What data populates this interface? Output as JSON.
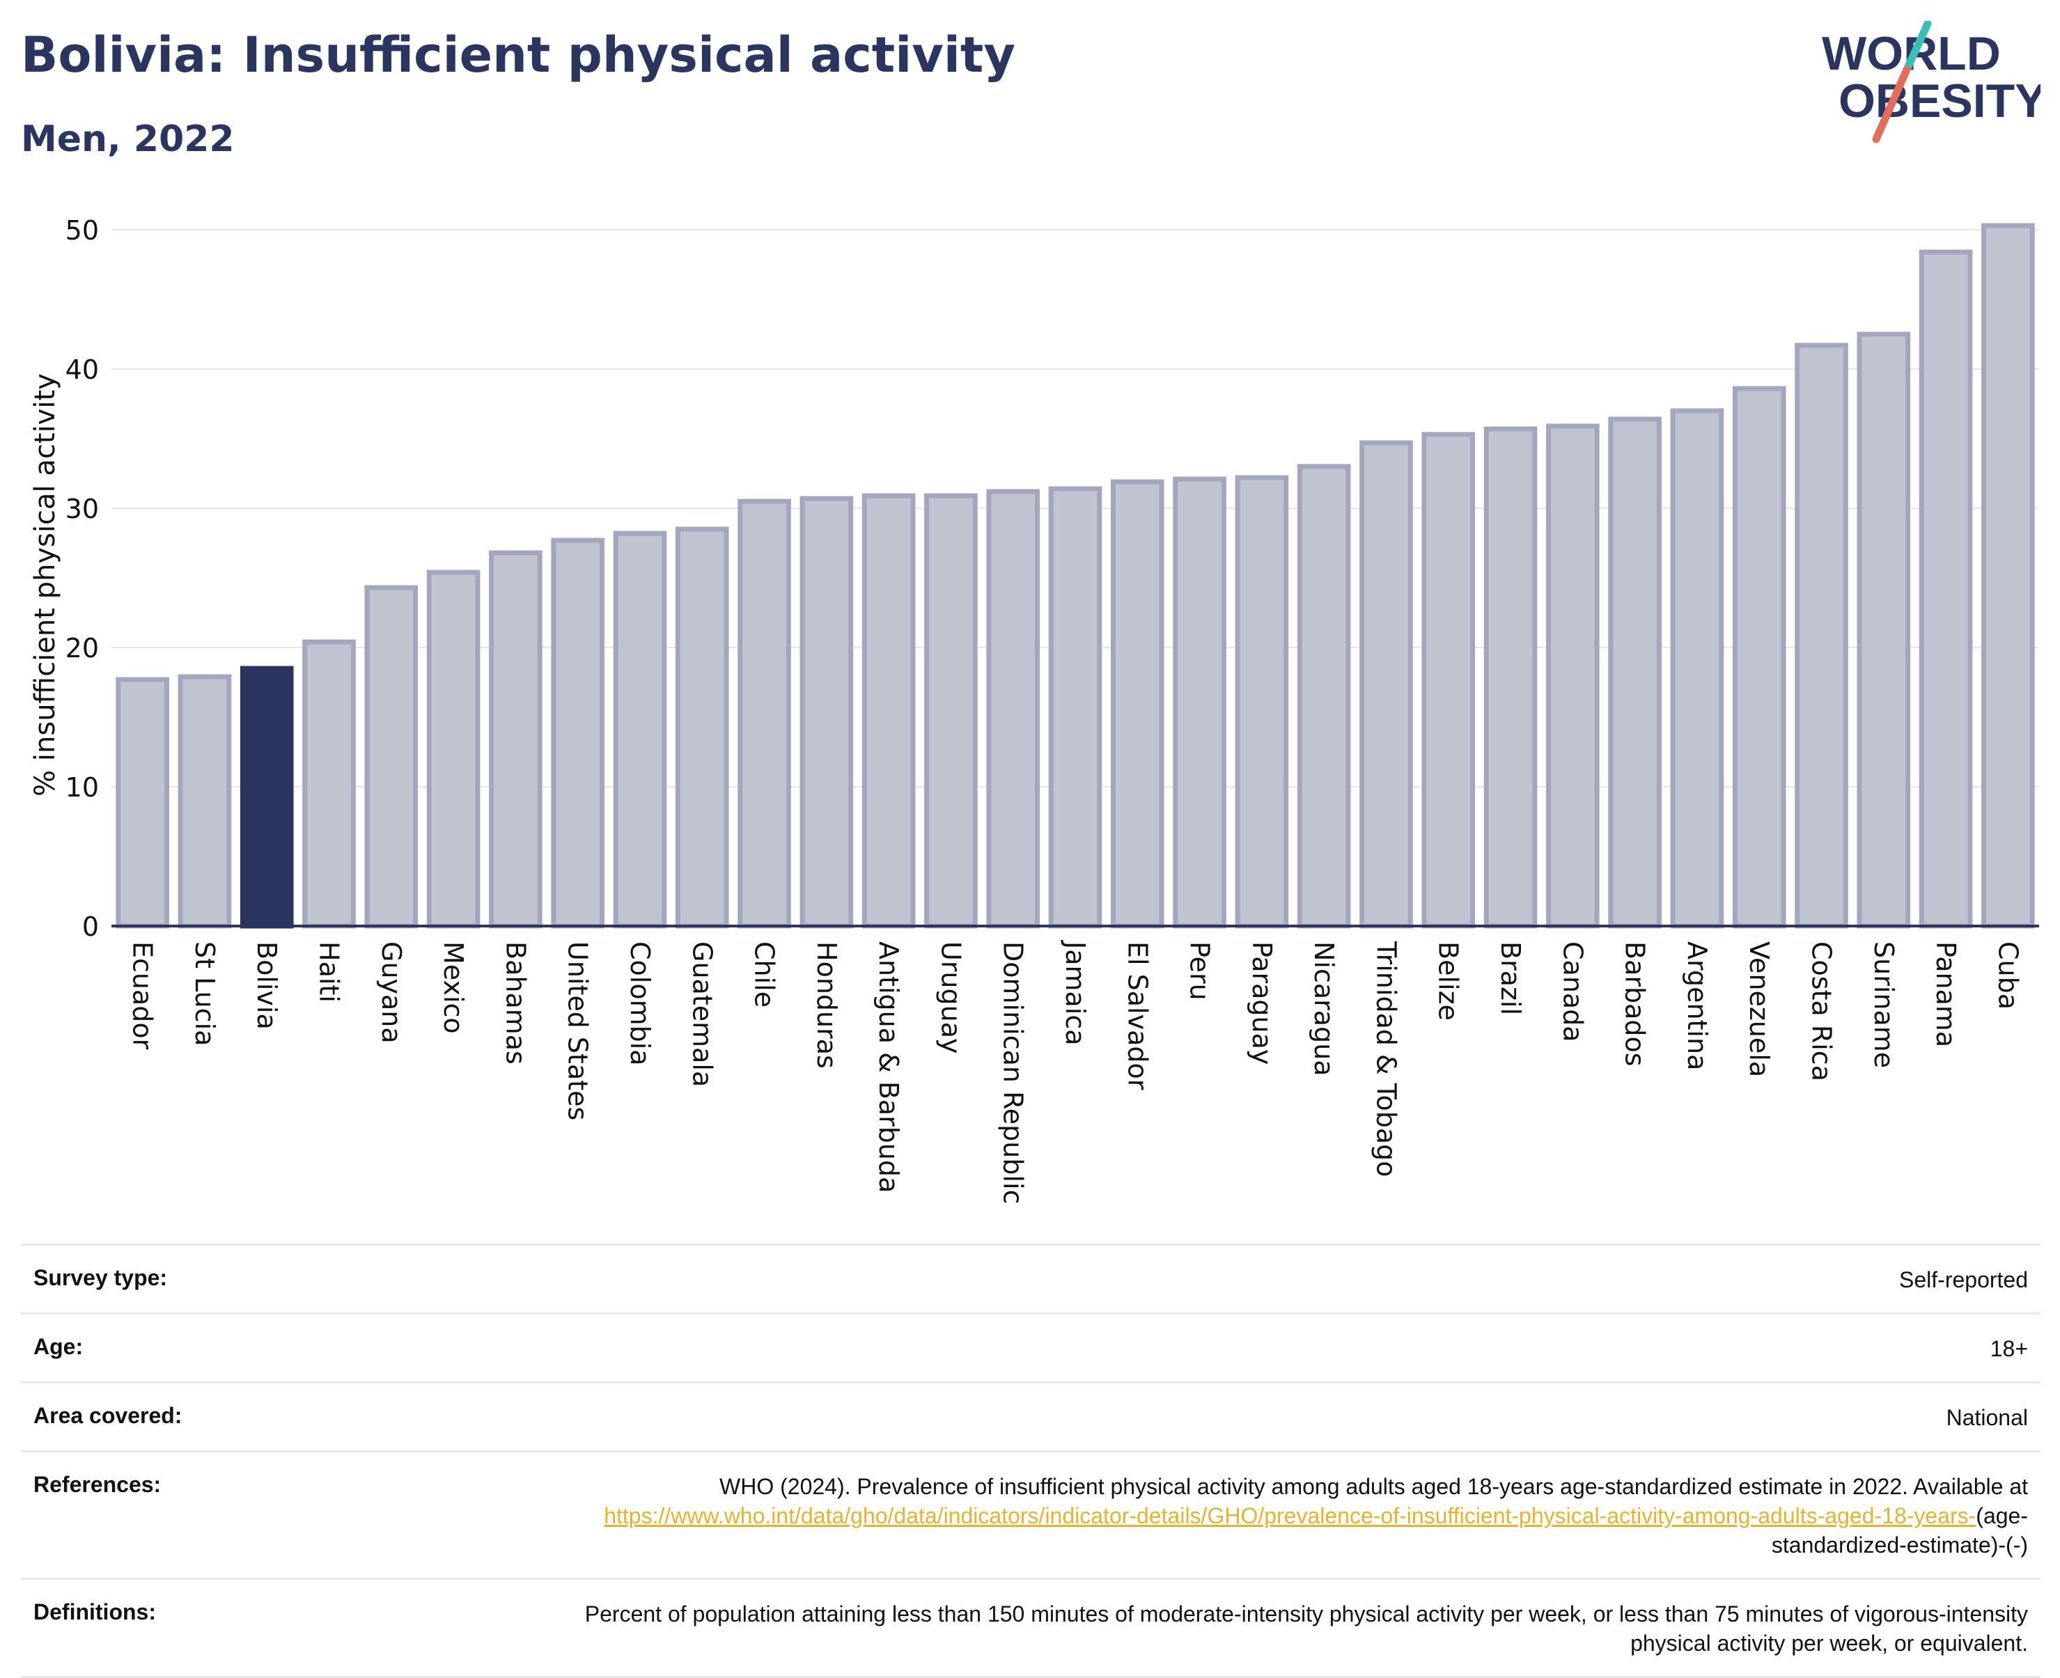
{
  "header": {
    "title": "Bolivia: Insufficient physical activity",
    "subtitle": "Men, 2022"
  },
  "logo": {
    "line1": "WORLD",
    "line2": "OBESITY"
  },
  "colors": {
    "highlight": "#2b3660",
    "bar_fill": "#c0c3d0",
    "bar_stroke": "#a2a7bd",
    "grid": "#e4e6ec",
    "axis": "#2b3660",
    "link": "#e8b230",
    "logo_teal": "#3bbfb4",
    "logo_coral": "#e26d5c"
  },
  "chart_data": {
    "type": "bar",
    "title": "",
    "xlabel": "",
    "ylabel": "% insufficient physical activity",
    "ylim": [
      0,
      52
    ],
    "yticks": [
      0,
      10,
      20,
      30,
      40,
      50
    ],
    "grid": true,
    "highlight": "Bolivia",
    "categories": [
      "Ecuador",
      "St Lucia",
      "Bolivia",
      "Haiti",
      "Guyana",
      "Mexico",
      "Bahamas",
      "United States",
      "Colombia",
      "Guatemala",
      "Chile",
      "Honduras",
      "Antigua & Barbuda",
      "Uruguay",
      "Dominican Republic",
      "Jamaica",
      "El Salvador",
      "Peru",
      "Paraguay",
      "Nicaragua",
      "Trinidad & Tobago",
      "Belize",
      "Brazil",
      "Canada",
      "Barbados",
      "Argentina",
      "Venezuela",
      "Costa Rica",
      "Suriname",
      "Panama",
      "Cuba"
    ],
    "values": [
      17.7,
      17.9,
      18.5,
      20.4,
      24.3,
      25.4,
      26.8,
      27.7,
      28.2,
      28.5,
      30.5,
      30.7,
      30.9,
      30.9,
      31.2,
      31.4,
      31.9,
      32.1,
      32.2,
      33.0,
      34.7,
      35.3,
      35.7,
      35.9,
      36.4,
      37.0,
      38.6,
      41.7,
      42.5,
      48.4,
      50.3
    ]
  },
  "info": {
    "survey_type_label": "Survey type:",
    "survey_type_value": "Self-reported",
    "age_label": "Age:",
    "age_value": "18+",
    "area_label": "Area covered:",
    "area_value": "National",
    "references_label": "References:",
    "references_text": "WHO (2024). Prevalence of insufficient physical activity among adults aged 18-years age-standardized estimate in 2022. Available at",
    "references_link": "https://www.who.int/data/gho/data/indicators/indicator-details/GHO/prevalence-of-insufficient-physical-activity-among-adults-aged-18-years-",
    "references_suffix": "(age-standardized-estimate)-(-)",
    "definitions_label": "Definitions:",
    "definitions_value": "Percent of population attaining less than 150 minutes of moderate-intensity physical activity per week, or less than 75 minutes of vigorous-intensity physical activity per week, or equivalent."
  }
}
